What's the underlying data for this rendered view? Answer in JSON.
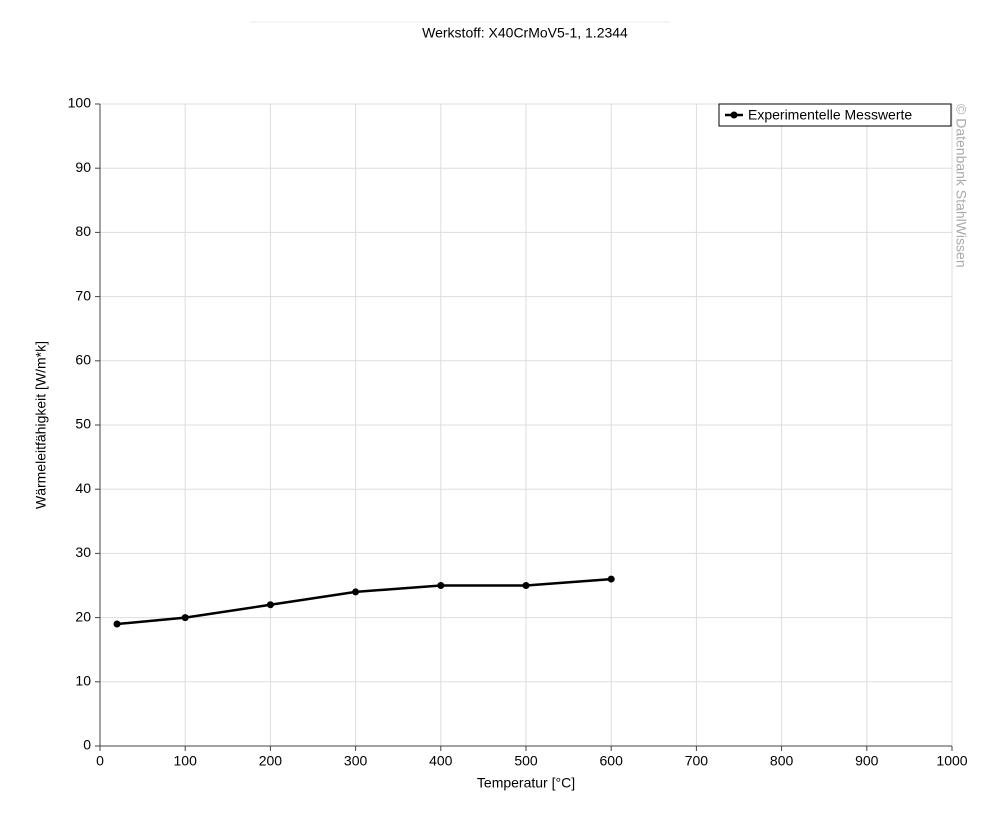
{
  "chart_data": {
    "type": "line",
    "title": "Werkstoff: X40CrMoV5-1, 1.2344",
    "x_label": "Temperatur [°C]",
    "y_label": "Wärmeleitfähigkeit [W/m*k]",
    "annotation": "© Datenbank StahlWissen",
    "x": [
      20,
      100,
      200,
      300,
      400,
      500,
      600
    ],
    "series": [
      {
        "name": "Experimentelle Messwerte",
        "color": "#000000",
        "values": [
          19,
          20,
          22,
          24,
          25,
          25,
          26
        ]
      }
    ],
    "xlim": [
      0,
      1000
    ],
    "xticks": [
      0,
      100,
      200,
      300,
      400,
      500,
      600,
      700,
      800,
      900,
      1000
    ],
    "ylim": [
      0,
      100
    ],
    "yticks": [
      0,
      10,
      20,
      30,
      40,
      50,
      60,
      70,
      80,
      90,
      100
    ],
    "grid": true,
    "legend": "top-right"
  }
}
